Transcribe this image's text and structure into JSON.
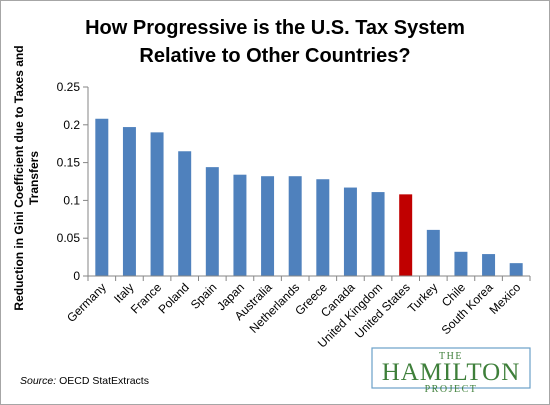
{
  "chart_data": {
    "type": "bar",
    "title_line1": "How Progressive is the U.S. Tax System",
    "title_line2": "Relative to Other Countries?",
    "ylabel_line1": "Reduction in Gini Coefficient due to Taxes and",
    "ylabel_line2": "Transfers",
    "xlabel": "",
    "categories": [
      "Germany",
      "Italy",
      "France",
      "Poland",
      "Spain",
      "Japan",
      "Australia",
      "Netherlands",
      "Greece",
      "Canada",
      "United Kingdom",
      "United States",
      "Turkey",
      "Chile",
      "South Korea",
      "Mexico"
    ],
    "values": [
      0.208,
      0.197,
      0.19,
      0.165,
      0.144,
      0.134,
      0.132,
      0.132,
      0.128,
      0.117,
      0.111,
      0.108,
      0.061,
      0.032,
      0.029,
      0.017
    ],
    "ylim": [
      0,
      0.25
    ],
    "yticks": [
      0,
      0.05,
      0.1,
      0.15,
      0.2,
      0.25
    ],
    "ytick_labels": [
      "0",
      "0.05",
      "0.1",
      "0.15",
      "0.2",
      "0.25"
    ],
    "bar_color": "#4f81bd",
    "highlight_category": "United States",
    "highlight_color": "#c00000",
    "grid": false,
    "legend": "none"
  },
  "source": {
    "prefix": "Source:",
    "text": " OECD StatExtracts"
  },
  "logo": {
    "line1": "THE",
    "line2": "HAMILTON",
    "line3": "PROJECT",
    "color": "#3e7f3a",
    "border_color": "#6aa0c8"
  }
}
